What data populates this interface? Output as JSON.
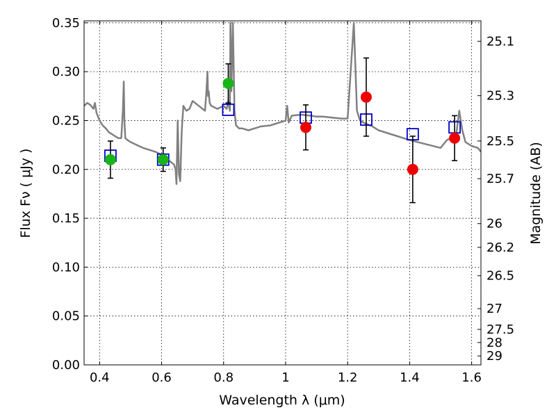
{
  "chart_data": {
    "type": "scatter",
    "xlabel": "Wavelength  λ (μm)",
    "ylabel": "Flux  Fν  ( μJy )",
    "y2label": "Magnitude (AB)",
    "xlim": [
      0.35,
      1.63
    ],
    "ylim": [
      0.0,
      0.352
    ],
    "grid": true,
    "x_ticks": [
      0.4,
      0.6,
      0.8,
      1.0,
      1.2,
      1.4,
      1.6
    ],
    "x_tick_labels": [
      "0.4",
      "0.6",
      "0.8",
      "1",
      "1.2",
      "1.4",
      "1.6"
    ],
    "y_ticks": [
      0.0,
      0.05,
      0.1,
      0.15,
      0.2,
      0.25,
      0.3,
      0.35
    ],
    "y_tick_labels": [
      "0.00",
      "0.05",
      "0.10",
      "0.15",
      "0.20",
      "0.25",
      "0.30",
      "0.35"
    ],
    "y2_tick_labels": [
      "25.1",
      "25.3",
      "25.5",
      "25.7",
      "26",
      "26.2",
      "26.5",
      "27",
      "27.5",
      "28",
      "29"
    ],
    "colors": {
      "model": "#808080",
      "green": "#18b418",
      "red": "#ee0000",
      "square": "#0000cc",
      "errorbar": "#000000"
    },
    "series": [
      {
        "marker": "line",
        "color": "#808080",
        "x": [
          0.35,
          0.36,
          0.37,
          0.38,
          0.385,
          0.39,
          0.4,
          0.41,
          0.42,
          0.43,
          0.44,
          0.45,
          0.46,
          0.47,
          0.475,
          0.478,
          0.48,
          0.483,
          0.49,
          0.5,
          0.52,
          0.54,
          0.56,
          0.58,
          0.6,
          0.62,
          0.64,
          0.645,
          0.648,
          0.652,
          0.656,
          0.66,
          0.665,
          0.67,
          0.68,
          0.69,
          0.7,
          0.72,
          0.74,
          0.745,
          0.748,
          0.75,
          0.752,
          0.755,
          0.76,
          0.78,
          0.8,
          0.81,
          0.815,
          0.82,
          0.822,
          0.825,
          0.83,
          0.835,
          0.84,
          0.85,
          0.86,
          0.88,
          0.9,
          0.92,
          0.95,
          0.98,
          1.0,
          1.005,
          1.01,
          1.02,
          1.05,
          1.08,
          1.1,
          1.12,
          1.15,
          1.18,
          1.2,
          1.22,
          1.23,
          1.24,
          1.25,
          1.28,
          1.3,
          1.35,
          1.4,
          1.45,
          1.5,
          1.52,
          1.55,
          1.56,
          1.57,
          1.58,
          1.6,
          1.62,
          1.63
        ],
        "y": [
          0.265,
          0.268,
          0.266,
          0.262,
          0.268,
          0.258,
          0.25,
          0.245,
          0.242,
          0.238,
          0.236,
          0.234,
          0.232,
          0.232,
          0.26,
          0.29,
          0.25,
          0.232,
          0.23,
          0.228,
          0.225,
          0.222,
          0.22,
          0.218,
          0.215,
          0.21,
          0.205,
          0.2,
          0.185,
          0.25,
          0.195,
          0.188,
          0.24,
          0.265,
          0.26,
          0.262,
          0.27,
          0.265,
          0.26,
          0.282,
          0.3,
          0.275,
          0.28,
          0.268,
          0.265,
          0.262,
          0.265,
          0.262,
          0.27,
          0.26,
          0.35,
          0.28,
          0.35,
          0.26,
          0.245,
          0.242,
          0.242,
          0.24,
          0.242,
          0.244,
          0.245,
          0.248,
          0.25,
          0.265,
          0.248,
          0.255,
          0.256,
          0.255,
          0.254,
          0.254,
          0.253,
          0.252,
          0.252,
          0.35,
          0.26,
          0.25,
          0.248,
          0.244,
          0.24,
          0.235,
          0.23,
          0.226,
          0.222,
          0.23,
          0.235,
          0.26,
          0.24,
          0.228,
          0.224,
          0.222,
          0.218
        ]
      },
      {
        "marker": "square",
        "color": "#0000cc",
        "x": [
          0.435,
          0.605,
          0.815,
          1.065,
          1.26,
          1.41,
          1.545
        ],
        "y": [
          0.214,
          0.21,
          0.261,
          0.253,
          0.251,
          0.236,
          0.243
        ]
      },
      {
        "marker": "circle",
        "color": "#18b418",
        "x": [
          0.435,
          0.605,
          0.815
        ],
        "y": [
          0.21,
          0.21,
          0.288
        ],
        "err": [
          0.019,
          0.012,
          0.02
        ]
      },
      {
        "marker": "circle",
        "color": "#ee0000",
        "x": [
          1.065,
          1.26,
          1.41,
          1.545
        ],
        "y": [
          0.243,
          0.274,
          0.2,
          0.232
        ],
        "err": [
          0.023,
          0.04,
          0.034,
          0.023
        ]
      }
    ]
  }
}
